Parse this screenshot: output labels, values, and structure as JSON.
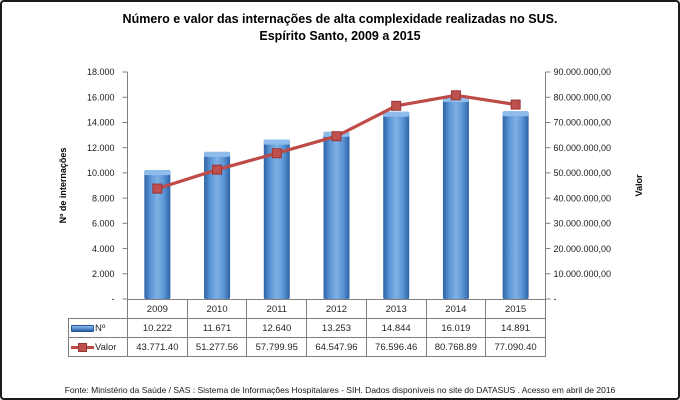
{
  "title": {
    "line1": "Número e valor das internações de alta complexidade realizadas no SUS.",
    "line2": "Espírito Santo, 2009 a 2015"
  },
  "footer": {
    "text": "Fonte:  Ministério da Saúde / SAS : Sistema de Informações Hospitalares - SIH. Dados disponíveis no site do DATASUS . Acesso em abril de 2016"
  },
  "chart_data": {
    "type": "combo-bar-line",
    "categories": [
      "2009",
      "2010",
      "2011",
      "2012",
      "2013",
      "2014",
      "2015"
    ],
    "series": [
      {
        "name": "Nº",
        "type": "bar",
        "axis": "left",
        "values": [
          10222,
          11671,
          12640,
          13253,
          14844,
          16019,
          14891
        ],
        "color": "#4f81bd"
      },
      {
        "name": "Valor",
        "type": "line",
        "axis": "right",
        "values": [
          43771400,
          51277560,
          57799950,
          64547960,
          76596460,
          80768890,
          77090400
        ],
        "color": "#be4b48"
      }
    ],
    "left_axis": {
      "title": "Nº de internações",
      "min": 0,
      "max": 18000,
      "step": 2000,
      "tick_labels": [
        "18.000",
        "16.000",
        "14.000",
        "12.000",
        "10.000",
        "8.000",
        "6.000",
        "4.000",
        "2.000",
        "-"
      ]
    },
    "right_axis": {
      "title": "Valor",
      "min": 0,
      "max": 90000000,
      "step": 10000000,
      "tick_labels": [
        "90.000.000,00",
        "80.000.000,00",
        "70.000.000,00",
        "60.000.000,00",
        "50.000.000,00",
        "40.000.000,00",
        "30.000.000,00",
        "20.000.000,00",
        "10.000.000,00",
        "-"
      ]
    },
    "gridlines": false,
    "legend_position": "data-table"
  },
  "data_table": {
    "header_years": [
      "2009",
      "2010",
      "2011",
      "2012",
      "2013",
      "2014",
      "2015"
    ],
    "rows": [
      {
        "label": "Nº",
        "legend": "bar-swatch",
        "values": [
          "10.222",
          "11.671",
          "12.640",
          "13.253",
          "14.844",
          "16.019",
          "14.891"
        ]
      },
      {
        "label": "Valor",
        "legend": "line-marker-swatch",
        "values": [
          "43.771.40",
          "51.277.56",
          "57.799.95",
          "64.547.96",
          "76.596.46",
          "80.768.89",
          "77.090.40"
        ]
      }
    ]
  },
  "colors": {
    "bar_edge": "#2e62a6",
    "bar_mid": "#5c96d6",
    "bar_center": "#7fb0e4",
    "bar_cap": "#8fbcea",
    "line": "#be4b48",
    "marker_fill": "#c0504d",
    "marker_stroke": "#963634",
    "axis": "#808080",
    "table_border": "#7f7f7f",
    "text": "#262626"
  }
}
